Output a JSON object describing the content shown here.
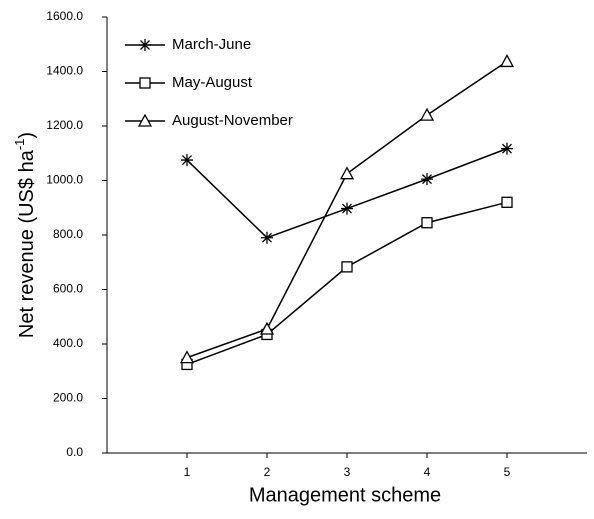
{
  "chart_data": {
    "type": "line",
    "x_label": "Management scheme",
    "y_label": {
      "main": "Net revenue (US$ ha",
      "sup": "-1",
      "close": ")"
    },
    "x": [
      1,
      2,
      3,
      4,
      5
    ],
    "xlim": [
      0,
      6
    ],
    "xticks": [
      1,
      2,
      3,
      4,
      5
    ],
    "ylim": [
      0,
      1600
    ],
    "yticks": [
      {
        "value": 0,
        "label": "0.0"
      },
      {
        "value": 200,
        "label": "200.0"
      },
      {
        "value": 400,
        "label": "400.0"
      },
      {
        "value": 600,
        "label": "600.0"
      },
      {
        "value": 800,
        "label": "800.0"
      },
      {
        "value": 1000,
        "label": "1000.0"
      },
      {
        "value": 1200,
        "label": "1200.0"
      },
      {
        "value": 1400,
        "label": "1400.0"
      },
      {
        "value": 1600,
        "label": "1600.0"
      }
    ],
    "grid": false,
    "legend": "upper left",
    "series": [
      {
        "name": "March-June",
        "color": "#000000",
        "marker": "star",
        "values": [
          1075,
          790,
          897,
          1005,
          1117
        ]
      },
      {
        "name": "May-August",
        "color": "#000000",
        "marker": "square",
        "values": [
          325,
          435,
          683,
          845,
          920
        ]
      },
      {
        "name": "August-November",
        "color": "#000000",
        "marker": "triangle",
        "values": [
          350,
          455,
          1025,
          1240,
          1437
        ]
      }
    ]
  }
}
